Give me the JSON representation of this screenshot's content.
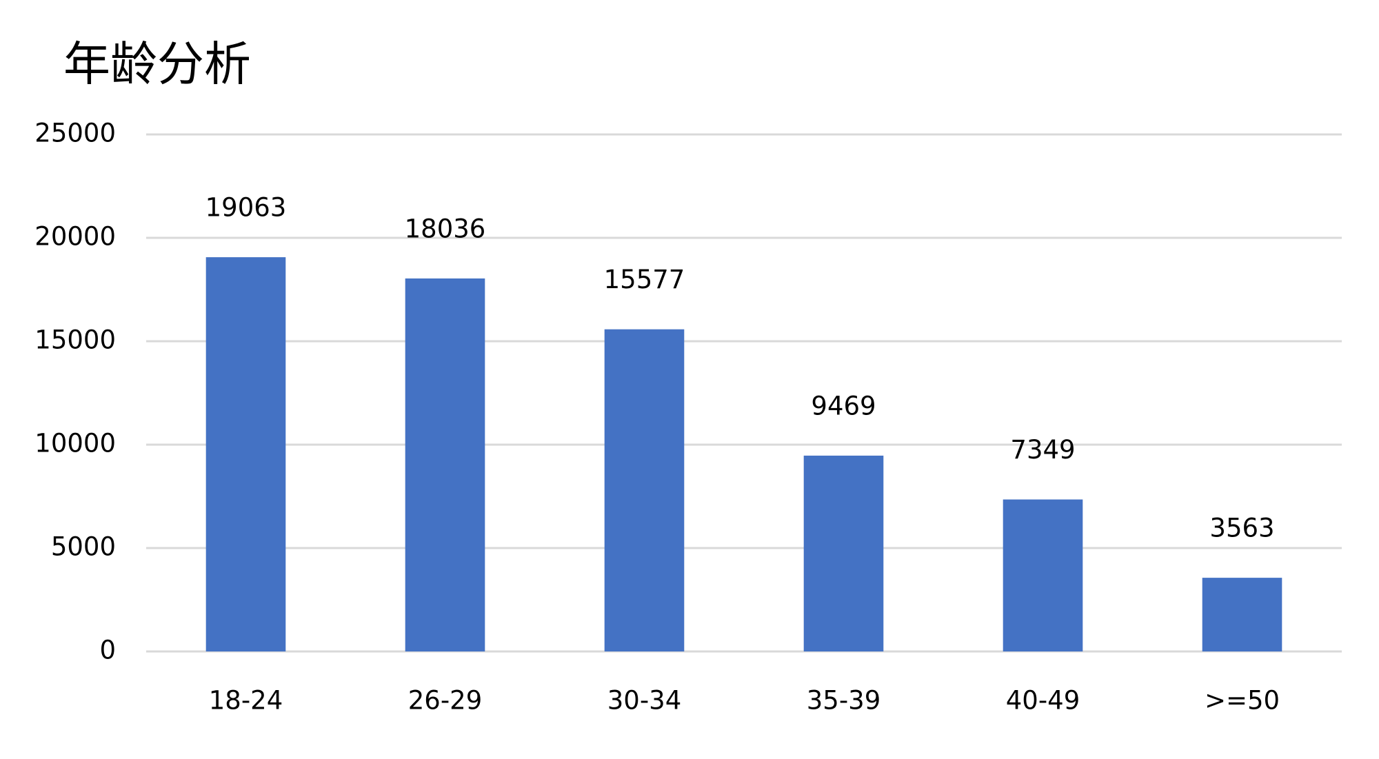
{
  "chart_data": {
    "type": "bar",
    "title": "年龄分析",
    "categories": [
      "18-24",
      "26-29",
      "30-34",
      "35-39",
      "40-49",
      ">=50"
    ],
    "values": [
      19063,
      18036,
      15577,
      9469,
      7349,
      3563
    ],
    "color": "#4472c4",
    "ylim": [
      0,
      25000
    ],
    "yticks": [
      0,
      5000,
      10000,
      15000,
      20000,
      25000
    ],
    "grid": true
  }
}
